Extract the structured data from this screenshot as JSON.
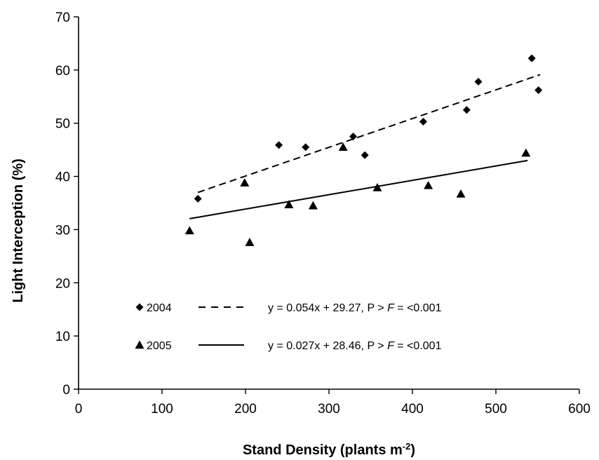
{
  "chart_data": {
    "type": "scatter",
    "xlabel": "Stand Density (plants m",
    "xlabel_sup": "-2",
    "xlabel_close": ")",
    "ylabel": "Light Interception (%)",
    "xlim": [
      0,
      600
    ],
    "ylim": [
      0,
      70
    ],
    "xticks": [
      "0",
      "100",
      "200",
      "300",
      "400",
      "500",
      "600"
    ],
    "yticks": [
      "0",
      "10",
      "20",
      "30",
      "40",
      "50",
      "60",
      "70"
    ],
    "grid": false,
    "legend_position": "bottom-left",
    "series": [
      {
        "name": "2004",
        "marker": "diamond",
        "trend_style": "dashed",
        "equation": "y = 0.054x + 29.27, P > F = <0.001",
        "equation_parts": [
          "y = 0.054x + 29.27, P > ",
          "F",
          " = <0.001"
        ],
        "trend_range": [
          143,
          553
        ],
        "slope": 0.054,
        "intercept": 29.27,
        "points": [
          {
            "x": 143,
            "y": 35.8
          },
          {
            "x": 240,
            "y": 45.9
          },
          {
            "x": 272,
            "y": 45.5
          },
          {
            "x": 329,
            "y": 47.5
          },
          {
            "x": 343,
            "y": 44.0
          },
          {
            "x": 413,
            "y": 50.3
          },
          {
            "x": 465,
            "y": 52.5
          },
          {
            "x": 479,
            "y": 57.8
          },
          {
            "x": 543,
            "y": 62.2
          },
          {
            "x": 551,
            "y": 56.2
          }
        ]
      },
      {
        "name": "2005",
        "marker": "triangle",
        "trend_style": "solid",
        "equation": "y = 0.027x + 28.46, P > F = <0.001",
        "equation_parts": [
          "y = 0.027x + 28.46, P > ",
          "F",
          " = <0.001"
        ],
        "trend_range": [
          133,
          538
        ],
        "slope": 0.027,
        "intercept": 28.46,
        "points": [
          {
            "x": 133,
            "y": 29.8
          },
          {
            "x": 199,
            "y": 38.8
          },
          {
            "x": 205,
            "y": 27.6
          },
          {
            "x": 252,
            "y": 34.7
          },
          {
            "x": 281,
            "y": 34.5
          },
          {
            "x": 317,
            "y": 45.5
          },
          {
            "x": 358,
            "y": 37.9
          },
          {
            "x": 419,
            "y": 38.3
          },
          {
            "x": 458,
            "y": 36.7
          },
          {
            "x": 536,
            "y": 44.4
          }
        ]
      }
    ]
  }
}
